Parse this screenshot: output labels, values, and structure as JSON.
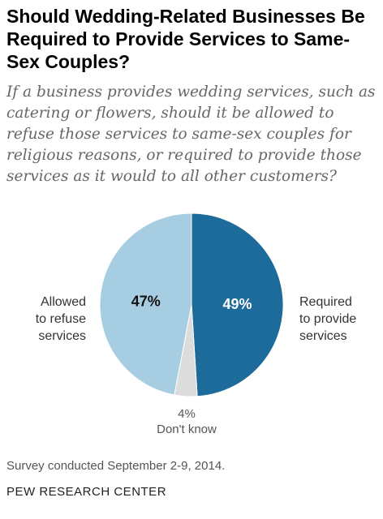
{
  "title": "Should Wedding-Related Businesses Be Required to Provide Services to Same-Sex Couples?",
  "subtitle": "If a business provides wedding services, such as catering or flowers, should it be allowed to refuse those services to same-sex couples for religious reasons, or required to provide those services as it would to all other customers?",
  "labels": {
    "left": [
      "Allowed",
      "to refuse",
      "services"
    ],
    "right": [
      "Required",
      "to provide",
      "services"
    ],
    "dont_know_value": "4%",
    "dont_know_name": "Don't know"
  },
  "footnote": "Survey conducted September 2-9, 2014.",
  "source": "PEW RESEARCH CENTER",
  "colors": {
    "required": "#1d6b9b",
    "allowed": "#a7cde2",
    "dont_know": "#dcdcdc"
  },
  "chart_data": {
    "type": "pie",
    "slices": [
      {
        "label": "Required to provide services",
        "value": 49,
        "value_label": "49%"
      },
      {
        "label": "Don't know",
        "value": 4,
        "value_label": "4%"
      },
      {
        "label": "Allowed to refuse services",
        "value": 47,
        "value_label": "47%"
      }
    ]
  }
}
